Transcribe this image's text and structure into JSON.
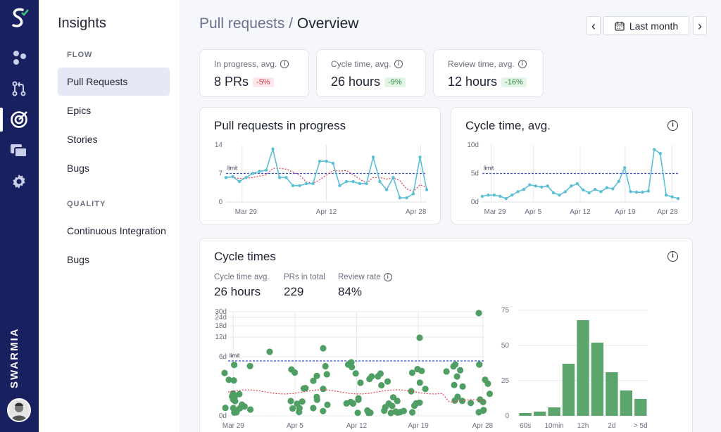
{
  "brand": {
    "wordmark": "SWARMIA"
  },
  "rail_icons": [
    "swarmia-logo-icon",
    "metrics-icon",
    "pull-requests-icon",
    "insights-target-icon",
    "work-log-icon",
    "settings-icon"
  ],
  "sidebar": {
    "title": "Insights",
    "sections": [
      {
        "label": "FLOW",
        "items": [
          "Pull Requests",
          "Epics",
          "Stories",
          "Bugs"
        ]
      },
      {
        "label": "QUALITY",
        "items": [
          "Continuous Integration",
          "Bugs"
        ]
      }
    ],
    "active_item": "Pull Requests"
  },
  "header": {
    "crumb": "Pull requests",
    "separator": " / ",
    "title": "Overview",
    "prev_label": "‹",
    "next_label": "›",
    "range_label": "Last month"
  },
  "kpis": [
    {
      "label": "In progress, avg.",
      "value": "8 PRs",
      "delta": "-5%",
      "tone": "red"
    },
    {
      "label": "Cycle time, avg.",
      "value": "26 hours",
      "delta": "-9%",
      "tone": "green"
    },
    {
      "label": "Review time, avg.",
      "value": "12 hours",
      "delta": "-16%",
      "tone": "green"
    }
  ],
  "charts": {
    "prs_in_progress": {
      "title": "Pull requests in progress",
      "y_ticks": [
        "14",
        "7",
        "0"
      ],
      "x_ticks": [
        "Mar 29",
        "Apr 12",
        "Apr 28"
      ],
      "limit_label": "limit",
      "limit": 7,
      "ylim": [
        0,
        14
      ],
      "values": [
        6,
        6.2,
        5,
        6,
        7,
        7.5,
        7.8,
        13,
        6,
        6,
        4,
        4,
        4.5,
        4.5,
        10,
        10,
        9.5,
        4,
        5,
        5,
        4.5,
        4.5,
        11,
        5,
        3,
        6,
        1,
        1,
        2,
        11,
        3
      ]
    },
    "cycle_time": {
      "title": "Cycle time, avg.",
      "y_ticks": [
        "10d",
        "5d",
        "0d"
      ],
      "x_ticks": [
        "Mar 29",
        "Apr 5",
        "Apr 12",
        "Apr 19",
        "Apr 28"
      ],
      "limit_label": "limit",
      "limit": 5,
      "ylim": [
        0,
        10
      ],
      "values": [
        1,
        1.2,
        1.2,
        1,
        0.6,
        1.2,
        1.8,
        2.2,
        3,
        2.8,
        2.6,
        2.8,
        1.6,
        1.2,
        1.8,
        2.8,
        3.2,
        2.1,
        1.6,
        2.2,
        1.8,
        2.5,
        2.3,
        3.6,
        6,
        1.8,
        1.7,
        1.7,
        1.9,
        9.2,
        8.5,
        1.2,
        0.9,
        0.6
      ]
    },
    "cycle_times": {
      "title": "Cycle times",
      "stats": [
        {
          "label": "Cycle time avg.",
          "value": "26 hours"
        },
        {
          "label": "PRs in total",
          "value": "229"
        },
        {
          "label": "Review rate",
          "value": "84%"
        }
      ],
      "scatter_y_ticks": [
        "30d",
        "24d",
        "18d",
        "12d",
        "6d",
        "0d"
      ],
      "scatter_x_ticks": [
        "Mar 29",
        "Apr 5",
        "Apr 12",
        "Apr 19",
        "Apr 28"
      ],
      "limit_label": "limit",
      "hist_y_ticks": [
        "75",
        "50",
        "25",
        "0"
      ],
      "hist_categories": [
        "60s",
        "",
        "10min",
        "",
        "12h",
        "",
        "2d",
        "",
        "> 5d"
      ],
      "hist_values": [
        2,
        3,
        6,
        37,
        68,
        52,
        31,
        18,
        12
      ]
    }
  },
  "colors": {
    "rail": "#182060",
    "line": "#5bbfd6",
    "limit": "#3b4fd6",
    "trend": "#e0404d",
    "dots": "#4f9e63",
    "bars": "#5ca56d"
  }
}
